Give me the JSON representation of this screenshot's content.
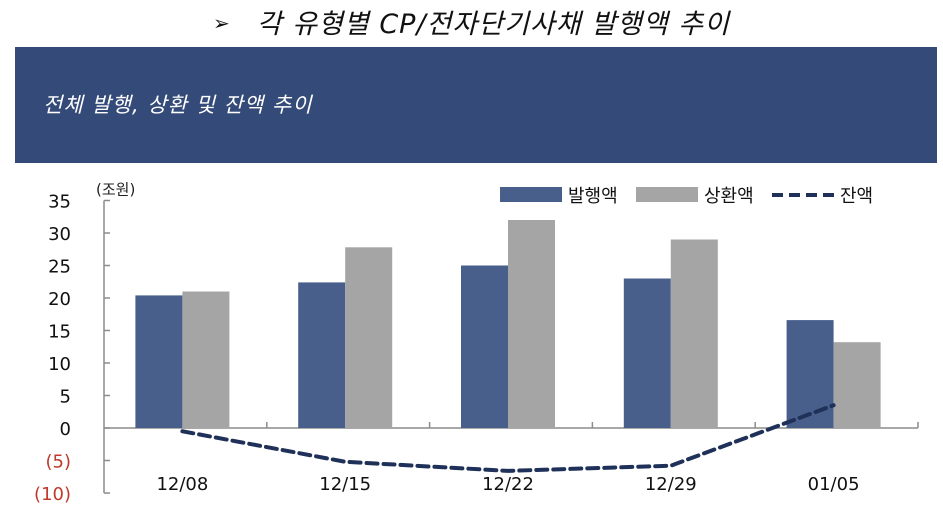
{
  "header": {
    "bullet_icon": "arrowhead-bullet",
    "bullet_glyph": "➢",
    "title": "각 유형별 CP/전자단기사채 발행액 추이"
  },
  "banner": {
    "title": "전체 발행, 상환 및 잔액 추이",
    "background": "#344a78"
  },
  "chart": {
    "unit_label": "(조원)",
    "y_ticks": [
      "35",
      "30",
      "25",
      "20",
      "15",
      "10",
      "5",
      "0",
      "(5)",
      "(10)"
    ],
    "legend": [
      {
        "label": "발행액",
        "color": "#485f8c",
        "type": "bar"
      },
      {
        "label": "상환액",
        "color": "#a5a5a5",
        "type": "bar"
      },
      {
        "label": "잔액",
        "color": "#1f3158",
        "type": "dashed-line"
      }
    ]
  },
  "chart_data": {
    "type": "bar",
    "title": "전체 발행, 상환 및 잔액 추이",
    "xlabel": "",
    "ylabel": "(조원)",
    "categories": [
      "12/08",
      "12/15",
      "12/22",
      "12/29",
      "01/05"
    ],
    "series": [
      {
        "name": "발행액",
        "type": "bar",
        "color": "#485f8c",
        "values": [
          20.4,
          22.4,
          25.0,
          23.0,
          16.6
        ]
      },
      {
        "name": "상환액",
        "type": "bar",
        "color": "#a5a5a5",
        "values": [
          21.0,
          27.8,
          32.0,
          29.0,
          13.2
        ]
      },
      {
        "name": "잔액",
        "type": "line",
        "style": "dashed",
        "color": "#1f3158",
        "values": [
          -0.5,
          -5.2,
          -6.6,
          -5.8,
          3.5
        ]
      }
    ],
    "ylim": [
      -10,
      35
    ],
    "y_tick_values": [
      35,
      30,
      25,
      20,
      15,
      10,
      5,
      0,
      -5,
      -10
    ],
    "negative_tick_color": "#c0392b",
    "grid": false,
    "legend_position": "top-right"
  }
}
